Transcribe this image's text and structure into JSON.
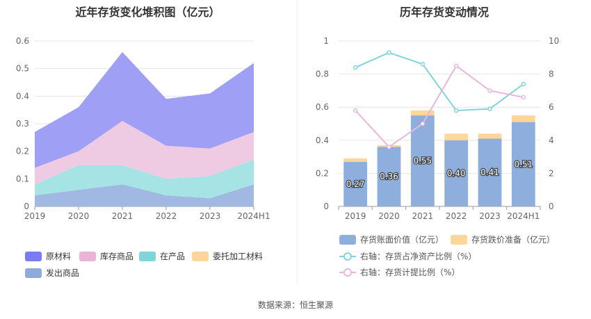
{
  "source_text": "数据来源：恒生聚源",
  "chart_data": [
    {
      "type": "area",
      "stacked": true,
      "title": "近年存货变化堆积图（亿元）",
      "categories": [
        "2019",
        "2020",
        "2021",
        "2022",
        "2023",
        "2024H1"
      ],
      "ylim": [
        0,
        0.6
      ],
      "yticks": [
        "0",
        "0.1",
        "0.2",
        "0.3",
        "0.4",
        "0.5",
        "0.6"
      ],
      "grid": true,
      "legend_position": "bottom",
      "series": [
        {
          "name": "发出商品",
          "color": "#a0b8e2",
          "values": [
            0.04,
            0.06,
            0.08,
            0.04,
            0.03,
            0.08
          ]
        },
        {
          "name": "委托加工材料",
          "color": "#fdd89a",
          "values": [
            0,
            0,
            0,
            0,
            0,
            0
          ]
        },
        {
          "name": "在产品",
          "color": "#a6e3e4",
          "values": [
            0.04,
            0.09,
            0.07,
            0.06,
            0.08,
            0.09
          ]
        },
        {
          "name": "库存商品",
          "color": "#efcae3",
          "values": [
            0.06,
            0.05,
            0.16,
            0.12,
            0.1,
            0.1
          ]
        },
        {
          "name": "原材料",
          "color": "#a09ff6",
          "values": [
            0.13,
            0.16,
            0.25,
            0.17,
            0.2,
            0.25
          ]
        }
      ],
      "legend_order": [
        {
          "name": "原材料",
          "color": "#7b7cf2"
        },
        {
          "name": "库存商品",
          "color": "#eab4d8"
        },
        {
          "name": "在产品",
          "color": "#7fd5d8"
        },
        {
          "name": "委托加工材料",
          "color": "#fdd69a"
        },
        {
          "name": "发出商品",
          "color": "#8eabdb"
        }
      ]
    },
    {
      "type": "bar",
      "title": "历年存货变动情况",
      "categories": [
        "2019",
        "2020",
        "2021",
        "2022",
        "2023",
        "2024H1"
      ],
      "ylim": [
        0,
        1
      ],
      "yticks": [
        "0",
        "0.2",
        "0.4",
        "0.6",
        "0.8",
        "1"
      ],
      "y2lim": [
        0,
        10
      ],
      "y2ticks": [
        "0",
        "2",
        "4",
        "6",
        "8",
        "10"
      ],
      "grid": true,
      "legend_position": "bottom",
      "bars": {
        "name": "存货账面价值（亿元）",
        "color": "#8eafdd",
        "values": [
          0.27,
          0.36,
          0.55,
          0.4,
          0.41,
          0.51
        ],
        "labels": [
          "0.27",
          "0.36",
          "0.55",
          "0.40",
          "0.41",
          "0.51"
        ]
      },
      "bars_stack": {
        "name": "存货跌价准备（亿元）",
        "color": "#fdd69a",
        "values": [
          0.02,
          0.01,
          0.03,
          0.04,
          0.03,
          0.04
        ]
      },
      "lines": [
        {
          "name": "右轴：存货占净资产比例（%）",
          "color": "#7ed4dc",
          "values": [
            8.4,
            9.3,
            8.6,
            5.8,
            5.9,
            7.4
          ]
        },
        {
          "name": "右轴：存货计提比例（%）",
          "color": "#e8b7dc",
          "values": [
            5.8,
            3.6,
            5.0,
            8.5,
            7.0,
            6.6
          ]
        }
      ]
    }
  ]
}
